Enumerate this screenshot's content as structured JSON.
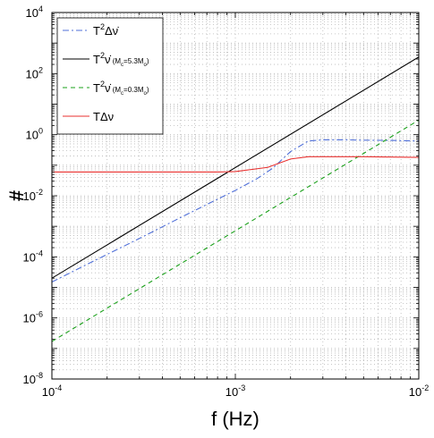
{
  "chart_data": {
    "type": "line",
    "xlabel": "f (Hz)",
    "ylabel": "#",
    "xscale": "log",
    "yscale": "log",
    "xlim": [
      0.0001,
      0.01
    ],
    "ylim": [
      1e-08,
      10000
    ],
    "grid": true,
    "legend_position": "top-left",
    "x_ticks": [
      {
        "value": 0.0001,
        "base": "10",
        "exp": "-4"
      },
      {
        "value": 0.001,
        "base": "10",
        "exp": "-3"
      },
      {
        "value": 0.01,
        "base": "10",
        "exp": "-2"
      }
    ],
    "y_ticks": [
      {
        "value": 1e-08,
        "base": "10",
        "exp": "-8"
      },
      {
        "value": 1e-06,
        "base": "10",
        "exp": "-6"
      },
      {
        "value": 0.0001,
        "base": "10",
        "exp": "-4"
      },
      {
        "value": 0.01,
        "base": "10",
        "exp": "-2"
      },
      {
        "value": 1,
        "base": "10",
        "exp": "0"
      },
      {
        "value": 100,
        "base": "10",
        "exp": "2"
      },
      {
        "value": 10000,
        "base": "10",
        "exp": "4"
      }
    ],
    "series": [
      {
        "name": "T²Δν̇",
        "legend": {
          "main": "T",
          "sup": "2",
          "tail": "Δν̇",
          "sub_pre": "",
          "sub_c": "",
          "sub_post": ""
        },
        "color": "#4f6fd8",
        "dash": "7,3,2,3",
        "x": [
          0.0001,
          0.00015,
          0.0002,
          0.0003,
          0.0005,
          0.0007,
          0.001,
          0.0013,
          0.0016,
          0.002,
          0.0025,
          0.003,
          0.004,
          0.005,
          0.007,
          0.01
        ],
        "y": [
          1.5e-05,
          5.1e-05,
          0.00012,
          0.0004,
          0.0019,
          0.0052,
          0.015,
          0.035,
          0.08,
          0.28,
          0.62,
          0.68,
          0.68,
          0.66,
          0.65,
          0.62
        ]
      },
      {
        "name": "T²ν̇ (Mc=5.3Mo)",
        "legend": {
          "main": "T",
          "sup": "2",
          "tail": "ν̇",
          "sub_pre": "(M",
          "sub_c": "c",
          "sub_post": "=5.3M",
          "sub_o": "o",
          "sub_end": ")"
        },
        "color": "#000000",
        "dash": "",
        "x": [
          0.0001,
          0.01
        ],
        "y": [
          2e-05,
          350
        ]
      },
      {
        "name": "T²ν̇ (Mc=0.3Mo)",
        "legend": {
          "main": "T",
          "sup": "2",
          "tail": "ν̇",
          "sub_pre": "(M",
          "sub_c": "c",
          "sub_post": "=0.3M",
          "sub_o": "o",
          "sub_end": ")"
        },
        "color": "#1aa01a",
        "dash": "5,4",
        "x": [
          0.0001,
          0.01
        ],
        "y": [
          1.7e-07,
          3
        ]
      },
      {
        "name": "TΔν",
        "legend": {
          "main": "T",
          "sup": "",
          "tail": "Δν",
          "sub_pre": "",
          "sub_c": "",
          "sub_post": ""
        },
        "color": "#e8302f",
        "dash": "",
        "x": [
          0.0001,
          0.0005,
          0.0008,
          0.001,
          0.0015,
          0.002,
          0.0025,
          0.003,
          0.005,
          0.007,
          0.01
        ],
        "y": [
          0.06,
          0.06,
          0.06,
          0.062,
          0.085,
          0.16,
          0.19,
          0.19,
          0.19,
          0.185,
          0.18
        ]
      }
    ]
  }
}
